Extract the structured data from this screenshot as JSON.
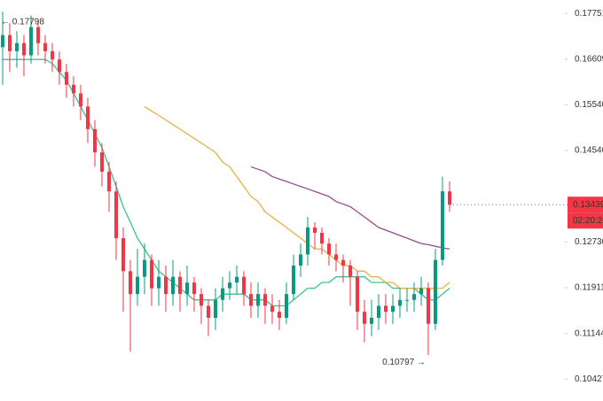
{
  "chart_data": {
    "type": "candlestick",
    "log_scale": true,
    "ylim": [
      0.101,
      0.181
    ],
    "yticks": [
      0.17751,
      0.16609,
      {
        "value": 0.1554,
        "label": "0.15540"
      },
      {
        "value": 0.1454,
        "label": "0.14540"
      },
      {
        "value": 0.1273,
        "label": "0.12730"
      },
      0.11911,
      0.11144,
      0.10427
    ],
    "up_color": "#089981",
    "down_color": "#f23645",
    "open": [
      0.169,
      0.172,
      0.168,
      0.17,
      0.167,
      0.174,
      0.17,
      0.168,
      0.166,
      0.163,
      0.16,
      0.158,
      0.155,
      0.15,
      0.145,
      0.141,
      0.137,
      0.128,
      0.122,
      0.118,
      0.121,
      0.124,
      0.119,
      0.121,
      0.118,
      0.121,
      0.118,
      0.12,
      0.118,
      0.116,
      0.114,
      0.117,
      0.119,
      0.12,
      0.121,
      0.118,
      0.116,
      0.118,
      0.116,
      0.115,
      0.114,
      0.118,
      0.123,
      0.125,
      0.13,
      0.129,
      0.127,
      0.125,
      0.124,
      0.123,
      0.121,
      0.115,
      0.113,
      0.114,
      0.116,
      0.115,
      0.116,
      0.117,
      0.117,
      0.118,
      0.119,
      0.113,
      0.124,
      0.137
    ],
    "high": [
      0.17798,
      0.175,
      0.173,
      0.172,
      0.177,
      0.176,
      0.172,
      0.17,
      0.168,
      0.165,
      0.162,
      0.16,
      0.157,
      0.152,
      0.147,
      0.143,
      0.139,
      0.13,
      0.124,
      0.126,
      0.127,
      0.125,
      0.124,
      0.123,
      0.124,
      0.122,
      0.123,
      0.121,
      0.119,
      0.117,
      0.119,
      0.121,
      0.122,
      0.123,
      0.122,
      0.12,
      0.12,
      0.119,
      0.118,
      0.117,
      0.12,
      0.125,
      0.127,
      0.132,
      0.131,
      0.13,
      0.128,
      0.127,
      0.125,
      0.124,
      0.122,
      0.117,
      0.117,
      0.118,
      0.118,
      0.118,
      0.119,
      0.119,
      0.12,
      0.121,
      0.12,
      0.126,
      0.14,
      0.139
    ],
    "low": [
      0.16,
      0.163,
      0.164,
      0.162,
      0.165,
      0.167,
      0.165,
      0.163,
      0.16,
      0.157,
      0.155,
      0.152,
      0.147,
      0.142,
      0.138,
      0.133,
      0.124,
      0.115,
      0.1085,
      0.116,
      0.118,
      0.116,
      0.116,
      0.115,
      0.116,
      0.115,
      0.116,
      0.115,
      0.113,
      0.111,
      0.112,
      0.115,
      0.117,
      0.118,
      0.116,
      0.114,
      0.114,
      0.113,
      0.113,
      0.112,
      0.113,
      0.117,
      0.121,
      0.123,
      0.126,
      0.125,
      0.123,
      0.122,
      0.12,
      0.116,
      0.112,
      0.11,
      0.111,
      0.112,
      0.113,
      0.113,
      0.114,
      0.115,
      0.115,
      0.116,
      0.10797,
      0.112,
      0.123,
      0.133
    ],
    "close": [
      0.172,
      0.168,
      0.17,
      0.167,
      0.174,
      0.17,
      0.168,
      0.166,
      0.163,
      0.16,
      0.158,
      0.155,
      0.15,
      0.145,
      0.141,
      0.137,
      0.128,
      0.122,
      0.118,
      0.121,
      0.124,
      0.119,
      0.121,
      0.118,
      0.121,
      0.118,
      0.12,
      0.118,
      0.116,
      0.114,
      0.117,
      0.119,
      0.12,
      0.121,
      0.118,
      0.116,
      0.118,
      0.116,
      0.115,
      0.114,
      0.118,
      0.123,
      0.125,
      0.13,
      0.129,
      0.127,
      0.125,
      0.124,
      0.123,
      0.121,
      0.115,
      0.113,
      0.114,
      0.116,
      0.115,
      0.116,
      0.117,
      0.117,
      0.118,
      0.119,
      0.113,
      0.124,
      0.137,
      0.13439
    ],
    "series": [
      {
        "color": "#3fbf98",
        "values": [
          0.166,
          0.166,
          0.166,
          0.166,
          0.166,
          0.166,
          0.166,
          0.165,
          0.163,
          0.161,
          0.158,
          0.155,
          0.152,
          0.149,
          0.146,
          0.142,
          0.138,
          0.134,
          0.131,
          0.128,
          0.126,
          0.124,
          0.122,
          0.121,
          0.12,
          0.119,
          0.118,
          0.117,
          0.117,
          0.117,
          0.117,
          0.118,
          0.118,
          0.118,
          0.118,
          0.117,
          0.117,
          0.117,
          0.116,
          0.116,
          0.116,
          0.117,
          0.118,
          0.119,
          0.119,
          0.12,
          0.12,
          0.121,
          0.121,
          0.121,
          0.121,
          0.121,
          0.12,
          0.12,
          0.12,
          0.119,
          0.119,
          0.119,
          0.119,
          0.118,
          0.117,
          0.117,
          0.118,
          0.119
        ]
      },
      {
        "color": "#e3b341",
        "values": [
          null,
          null,
          null,
          null,
          null,
          null,
          null,
          null,
          null,
          null,
          null,
          null,
          null,
          null,
          null,
          null,
          null,
          null,
          null,
          null,
          0.155,
          0.154,
          0.153,
          0.152,
          0.151,
          0.15,
          0.149,
          0.148,
          0.147,
          0.146,
          0.145,
          0.143,
          0.142,
          0.14,
          0.138,
          0.136,
          0.135,
          0.133,
          0.132,
          0.131,
          0.13,
          0.129,
          0.128,
          0.127,
          0.126,
          0.126,
          0.125,
          0.124,
          0.123,
          0.123,
          0.122,
          0.122,
          0.121,
          0.121,
          0.12,
          0.12,
          0.119,
          0.119,
          0.119,
          0.119,
          0.119,
          0.119,
          0.119,
          0.12
        ]
      },
      {
        "color": "#9c4a8c",
        "values": [
          null,
          null,
          null,
          null,
          null,
          null,
          null,
          null,
          null,
          null,
          null,
          null,
          null,
          null,
          null,
          null,
          null,
          null,
          null,
          null,
          null,
          null,
          null,
          null,
          null,
          null,
          null,
          null,
          null,
          null,
          null,
          null,
          null,
          null,
          null,
          0.142,
          0.1415,
          0.141,
          0.14,
          0.1395,
          0.139,
          0.1385,
          0.138,
          0.1375,
          0.137,
          0.1365,
          0.136,
          0.135,
          0.1345,
          0.134,
          0.133,
          0.132,
          0.131,
          0.13,
          0.1295,
          0.129,
          0.1285,
          0.128,
          0.1275,
          0.127,
          0.1268,
          0.1265,
          0.1262,
          0.126
        ]
      }
    ],
    "annotations": [
      {
        "text": "← 0.17798",
        "value": 0.17798,
        "index": 0
      },
      {
        "text": "0.10797 →",
        "value": 0.10797,
        "index": 60
      }
    ],
    "last_price": 0.13439,
    "countdown": "02:20:20"
  }
}
